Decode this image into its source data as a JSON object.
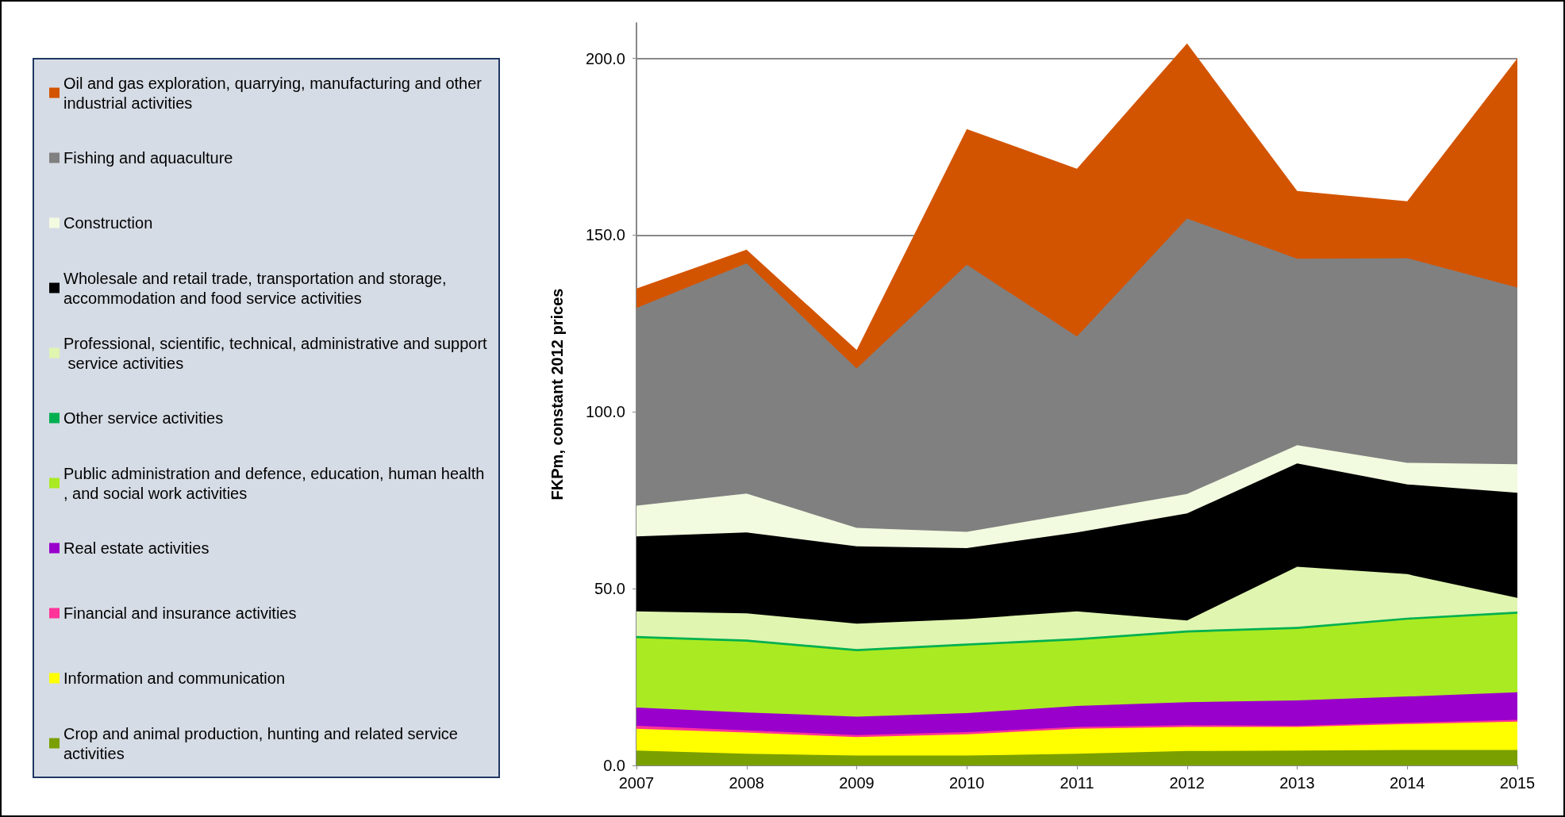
{
  "chart_data": {
    "type": "area",
    "stacked": true,
    "ylabel": "FKPm, constant 2012 prices",
    "x": [
      2007,
      2008,
      2009,
      2010,
      2011,
      2012,
      2013,
      2014,
      2015
    ],
    "xlim": [
      2007,
      2015
    ],
    "xticks": [
      2007,
      2008,
      2009,
      2010,
      2011,
      2012,
      2013,
      2014,
      2015
    ],
    "ylim": [
      0,
      210
    ],
    "yticks": [
      {
        "value": 0,
        "label": "0.0"
      },
      {
        "value": 50,
        "label": "50.0"
      },
      {
        "value": 100,
        "label": "100.0"
      },
      {
        "value": 150,
        "label": "150.0"
      },
      {
        "value": 200,
        "label": "200.0"
      }
    ],
    "grid": "y",
    "legend": "left",
    "series": [
      {
        "name": "Crop and animal production, hunting and related service activities",
        "color": "#7aa000",
        "values": [
          4.2,
          3.3,
          2.8,
          2.8,
          3.3,
          4.1,
          4.2,
          4.4,
          4.4
        ]
      },
      {
        "name": "Information and communication",
        "color": "#ffff00",
        "values": [
          6.2,
          6.0,
          5.2,
          6.0,
          7.1,
          6.8,
          6.7,
          7.3,
          8.0
        ]
      },
      {
        "name": "Financial and insurance activities",
        "color": "#ff3399",
        "values": [
          0.8,
          0.6,
          0.6,
          0.6,
          0.5,
          0.5,
          0.3,
          0.4,
          0.5
        ]
      },
      {
        "name": "Real estate activities",
        "color": "#9900cc",
        "values": [
          5.2,
          5.1,
          5.2,
          5.4,
          5.9,
          6.5,
          7.2,
          7.4,
          7.8
        ]
      },
      {
        "name": "Public administration and defence, education, human health, and social work activities",
        "color": "#aaea22",
        "values": [
          19.6,
          20.0,
          18.5,
          19.1,
          18.6,
          19.7,
          20.2,
          21.7,
          22.2
        ]
      },
      {
        "name": "Other service activities",
        "color": "#00b050",
        "values": [
          0.6,
          0.6,
          0.6,
          0.6,
          0.6,
          0.6,
          0.6,
          0.6,
          0.6
        ]
      },
      {
        "name": "Professional, scientific, technical, administrative and support service activities",
        "color": "#e0f5b0",
        "values": [
          7.0,
          7.4,
          7.2,
          6.9,
          7.6,
          2.8,
          17.0,
          12.3,
          3.9
        ]
      },
      {
        "name": "Wholesale and retail trade, transportation and storage, accommodation and food service activities",
        "color": "#000000",
        "values": [
          21.2,
          22.9,
          21.9,
          20.1,
          22.3,
          30.3,
          29.2,
          25.4,
          29.7
        ]
      },
      {
        "name": "Construction",
        "color": "#f2fae0",
        "values": [
          8.7,
          11.0,
          5.2,
          4.6,
          5.5,
          5.5,
          5.2,
          6.1,
          8.1
        ]
      },
      {
        "name": "Fishing and aquaculture",
        "color": "#808080",
        "values": [
          55.9,
          65.1,
          45.1,
          75.5,
          49.9,
          77.9,
          52.7,
          57.9,
          50.0
        ]
      },
      {
        "name": "Oil and gas exploration, quarrying, manufacturing and other industrial activities",
        "color": "#d35400",
        "values": [
          5.5,
          3.9,
          5.2,
          38.4,
          47.5,
          49.5,
          19.2,
          16.1,
          64.8
        ]
      }
    ]
  }
}
